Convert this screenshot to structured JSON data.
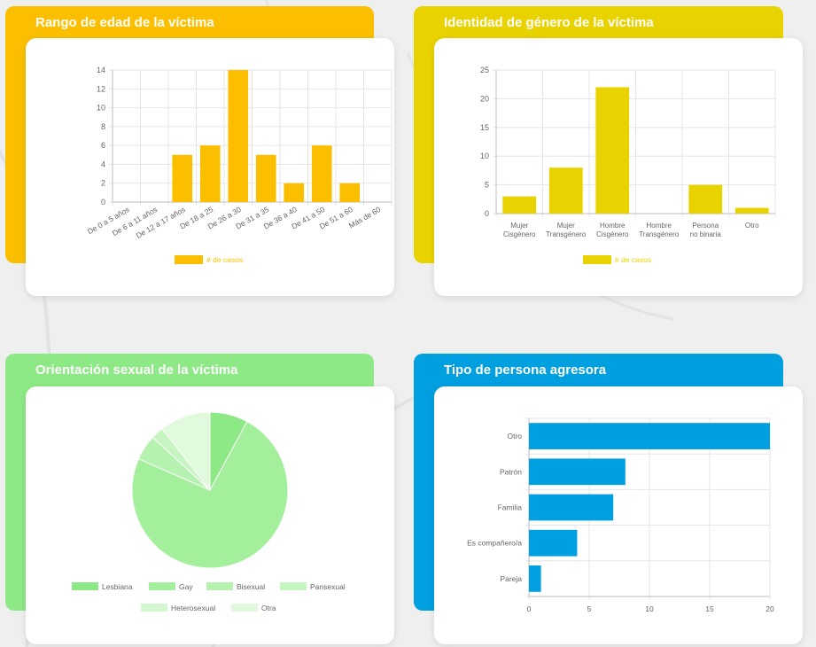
{
  "panels": [
    {
      "title": "Rango de edad de la víctima",
      "color": "#fbbf00"
    },
    {
      "title": "Identidad de género de la víctima",
      "color": "#e8d300"
    },
    {
      "title": "Orientación sexual de la víctima",
      "color": "#8de985"
    },
    {
      "title": "Tipo de persona agresora",
      "color": "#009fdf"
    }
  ],
  "chart_data": [
    {
      "type": "bar",
      "title": "Rango de edad de la víctima",
      "categories": [
        "De 0 a 5 años",
        "De 6 a 11 años",
        "De 12 a 17 años",
        "De 18 a 25",
        "De 26 a 30",
        "De 31 a 35",
        "De 36 a 40",
        "De 41 a 50",
        "De 51 a 60",
        "Más de 60"
      ],
      "values": [
        0,
        0,
        5,
        6,
        14,
        5,
        2,
        6,
        2,
        0
      ],
      "ylim": [
        0,
        14
      ],
      "yticks": [
        0,
        2,
        4,
        6,
        8,
        10,
        12,
        14
      ],
      "legend": "# de casos",
      "color": "#fbbf00"
    },
    {
      "type": "bar",
      "title": "Identidad de género de la víctima",
      "categories": [
        [
          "Mujer",
          "Cisgénero"
        ],
        [
          "Mujer",
          "Transgénero"
        ],
        [
          "Hombre",
          "Cisgénero"
        ],
        [
          "Hombre",
          "Transgénero"
        ],
        [
          "Persona",
          "no binaria"
        ],
        [
          "Otro"
        ]
      ],
      "values": [
        3,
        8,
        22,
        0,
        5,
        1
      ],
      "ylim": [
        0,
        25
      ],
      "yticks": [
        0,
        5,
        10,
        15,
        20,
        25
      ],
      "legend": "# de casos",
      "color": "#e8d300"
    },
    {
      "type": "pie",
      "title": "Orientación sexual de la víctima",
      "labels": [
        "Lesbiana",
        "Gay",
        "Bisexual",
        "Pansexual",
        "Heterosexual",
        "Otra"
      ],
      "values": [
        3,
        28,
        2,
        1,
        0,
        4
      ],
      "colors": [
        "#8de985",
        "#a3ef9c",
        "#b5f2af",
        "#c6f5c1",
        "#d3f7cf",
        "#e1faDd"
      ]
    },
    {
      "type": "bar",
      "orientation": "horizontal",
      "title": "Tipo de persona agresora",
      "categories": [
        "Otro",
        "Patrón",
        "Familia",
        "Es compañero/a",
        "Pareja"
      ],
      "values": [
        20,
        8,
        7,
        4,
        1
      ],
      "xlim": [
        0,
        20
      ],
      "xticks": [
        0,
        5,
        10,
        15,
        20
      ],
      "color": "#009fdf"
    }
  ]
}
